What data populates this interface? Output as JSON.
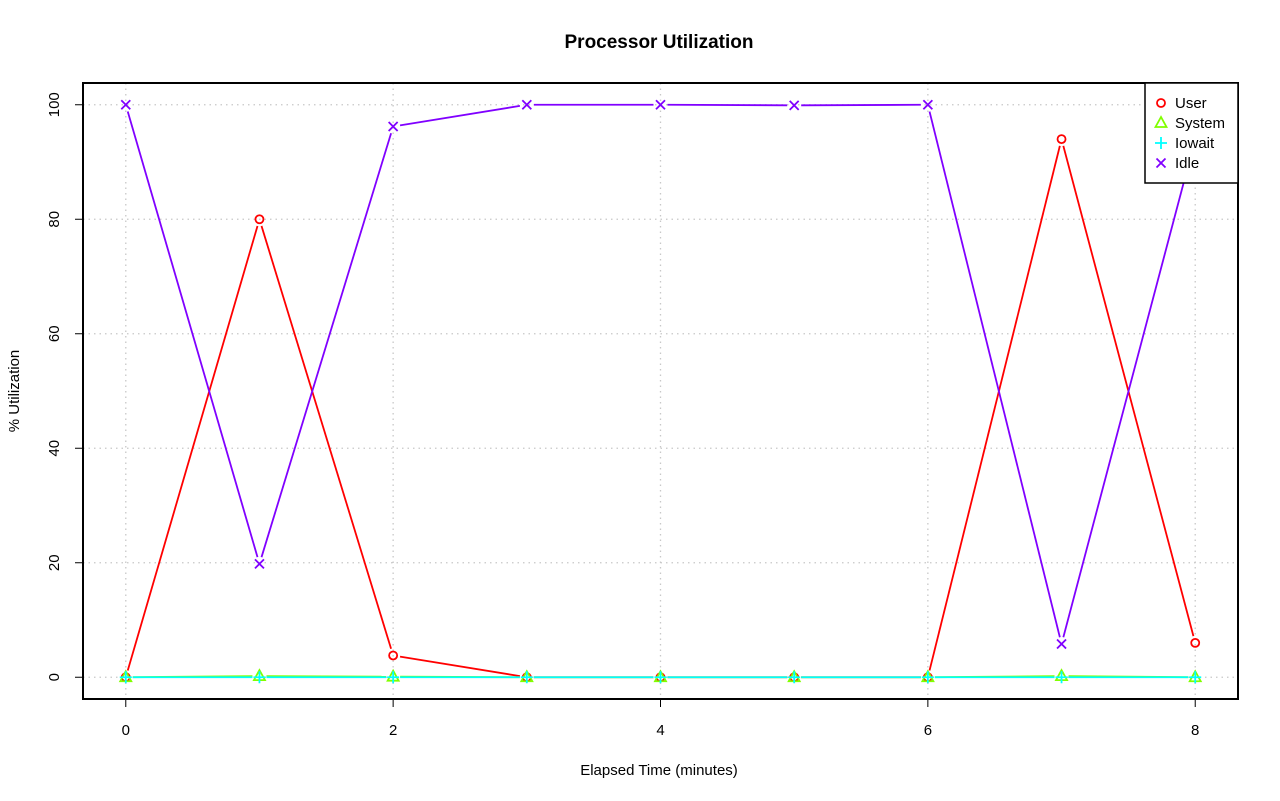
{
  "chart_data": {
    "type": "line",
    "title": "Processor Utilization",
    "xlabel": "Elapsed Time (minutes)",
    "ylabel": "% Utilization",
    "x": [
      0,
      1,
      2,
      3,
      4,
      5,
      6,
      7,
      8
    ],
    "x_ticks": [
      "0",
      "2",
      "4",
      "6",
      "8"
    ],
    "y_ticks": [
      "0",
      "20",
      "40",
      "60",
      "80",
      "100"
    ],
    "xlim": [
      -0.32,
      8.32
    ],
    "ylim": [
      -3.8,
      103.8
    ],
    "grid": true,
    "legend_position": "top-right",
    "series": [
      {
        "name": "User",
        "color": "#ff0000",
        "marker": "circle",
        "values": [
          0,
          80,
          3.8,
          0,
          0,
          0,
          0,
          94,
          6
        ]
      },
      {
        "name": "System",
        "color": "#80ff00",
        "marker": "triangle",
        "values": [
          0,
          0.2,
          0.1,
          0,
          0,
          0,
          0,
          0.2,
          0
        ]
      },
      {
        "name": "Iowait",
        "color": "#00ffff",
        "marker": "plus",
        "values": [
          0,
          0,
          0,
          0,
          0,
          0,
          0,
          0,
          0
        ]
      },
      {
        "name": "Idle",
        "color": "#8000ff",
        "marker": "cross",
        "values": [
          100,
          19.8,
          96.2,
          100,
          100,
          99.9,
          100,
          5.8,
          94
        ]
      }
    ]
  }
}
